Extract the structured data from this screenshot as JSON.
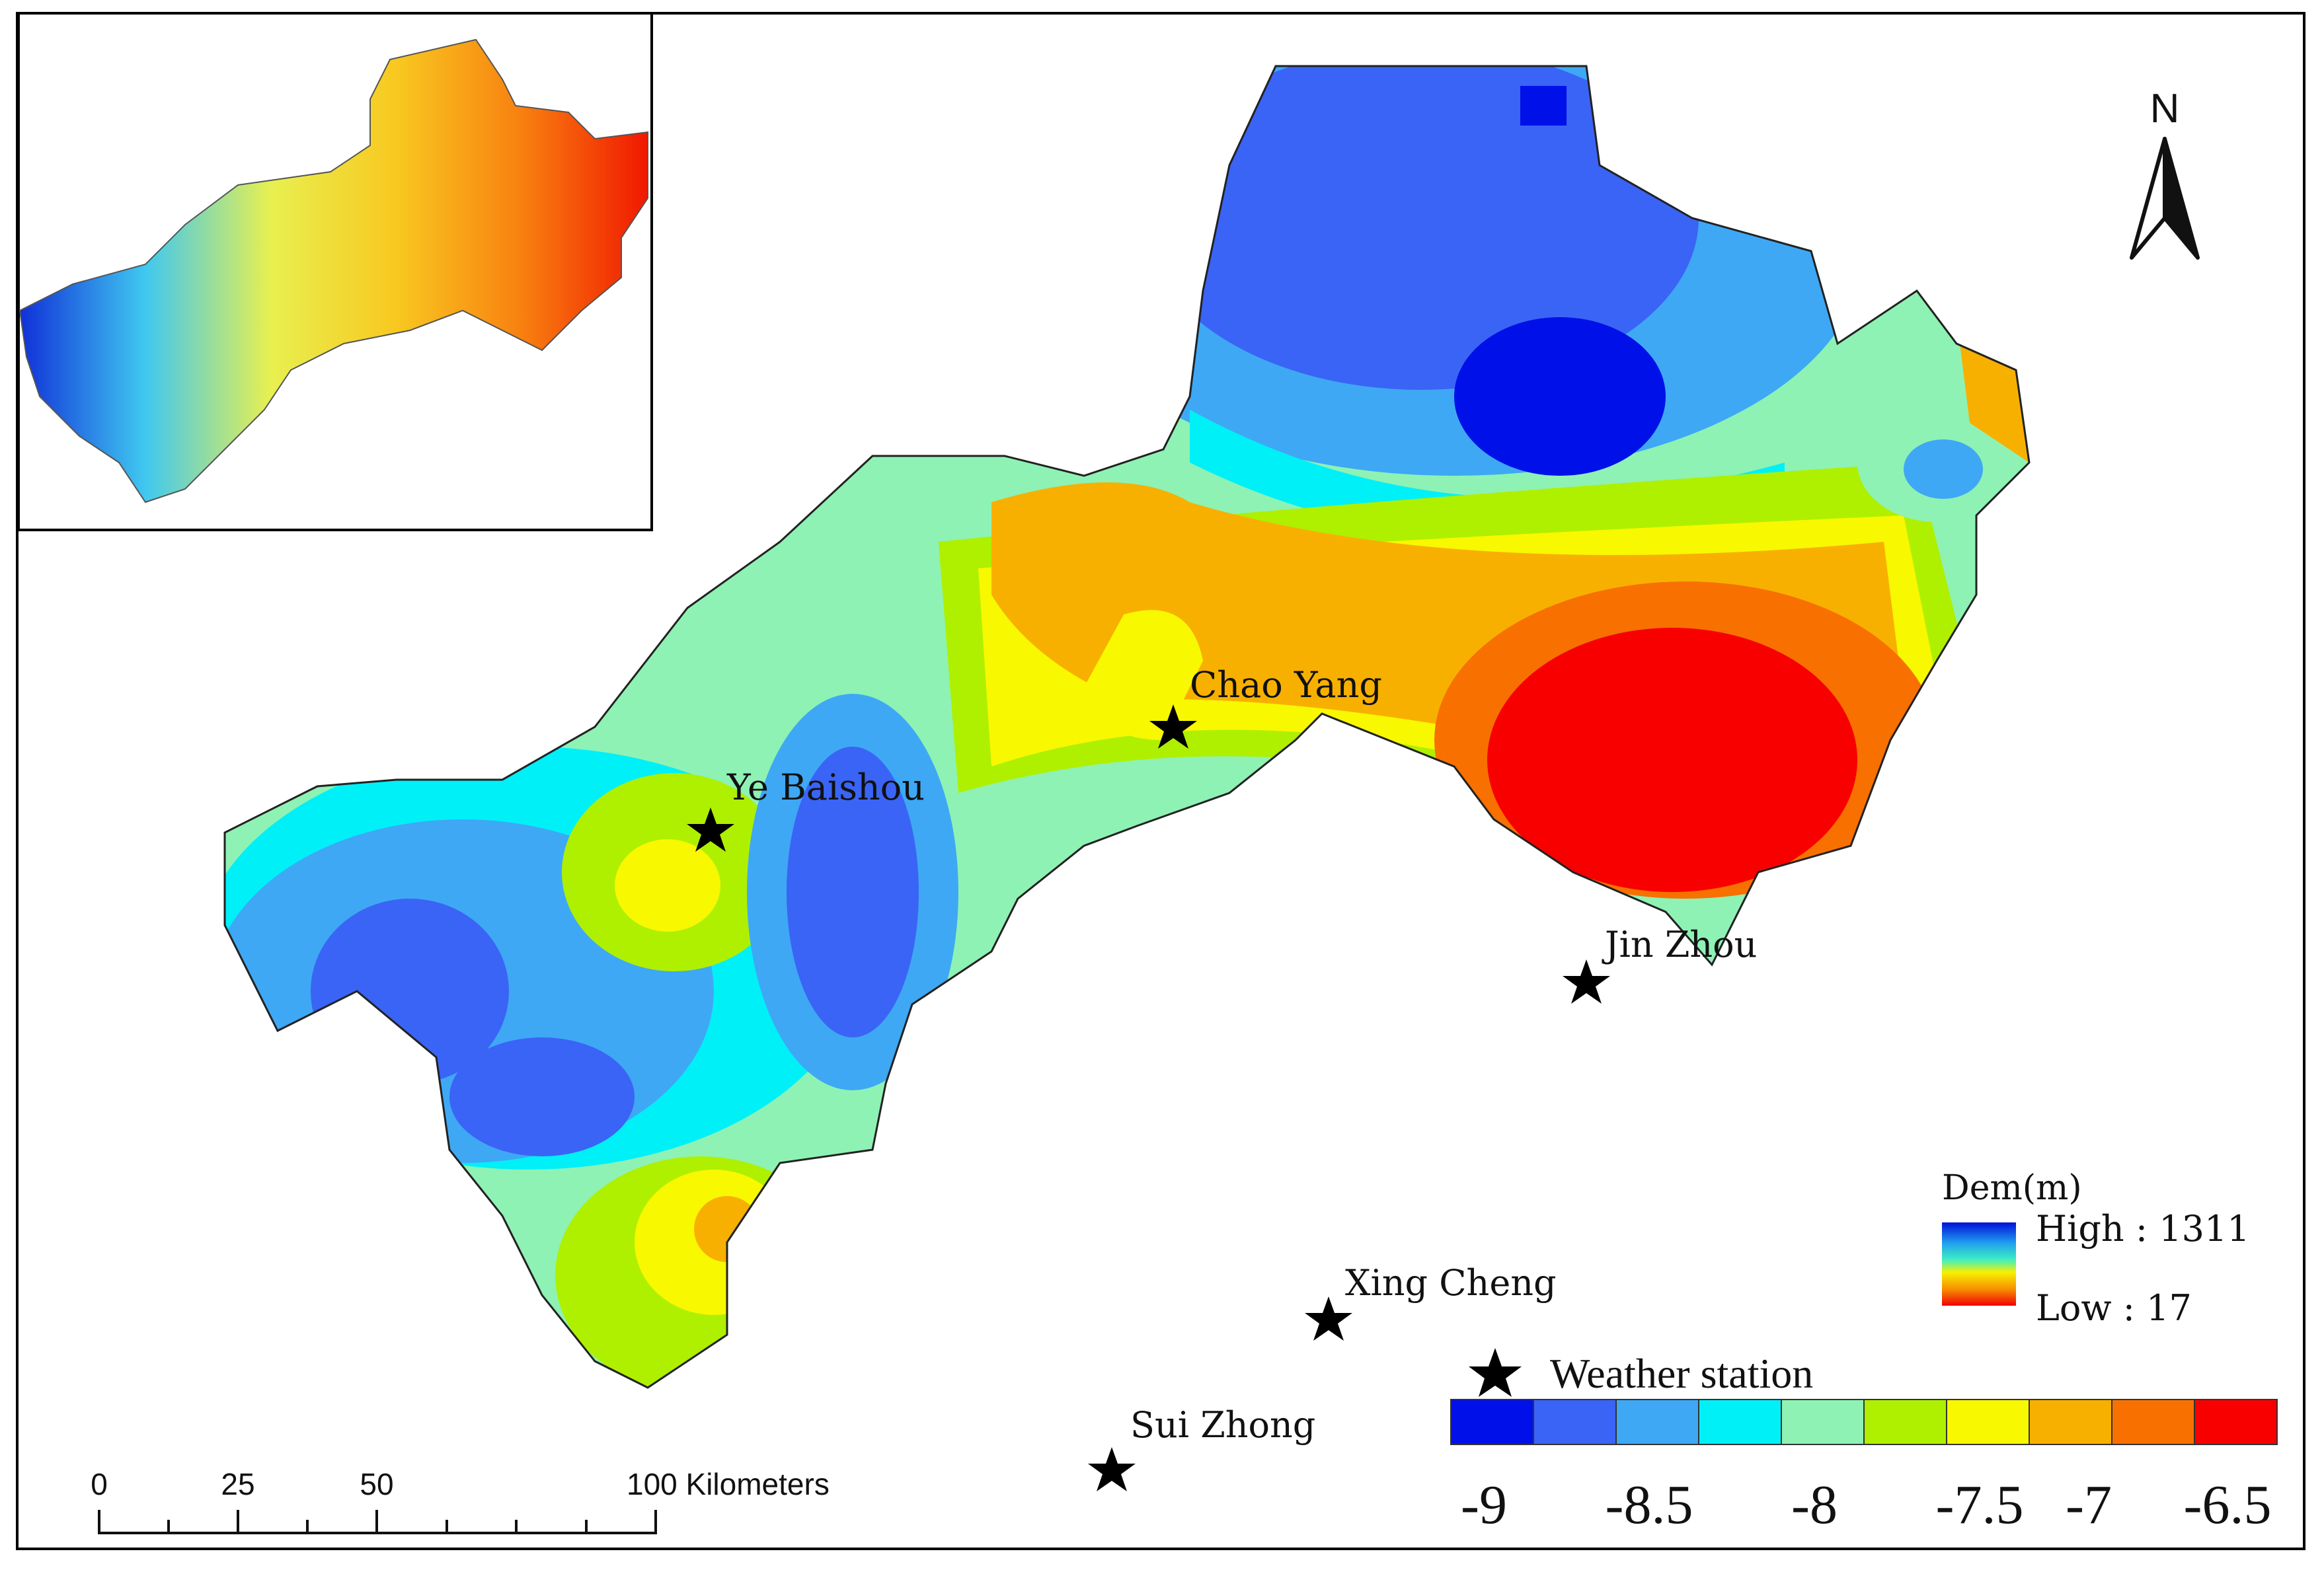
{
  "north_label": "N",
  "stations": [
    {
      "name": "Ye Baishou"
    },
    {
      "name": "Chao Yang"
    },
    {
      "name": "Jin Zhou"
    },
    {
      "name": "Xing Cheng"
    },
    {
      "name": "Sui Zhong"
    }
  ],
  "scale_bar": {
    "ticks": [
      "0",
      "25",
      "50",
      "100 Kilometers"
    ]
  },
  "dem_legend": {
    "title": "Dem(m)",
    "high_label": "High : 1311",
    "low_label": "Low : 17"
  },
  "station_legend": {
    "label": "Weather station"
  },
  "color_legend": {
    "colors": [
      "#0010e8",
      "#3a64f5",
      "#3ea8f5",
      "#00f0f8",
      "#8ef2b4",
      "#aef000",
      "#f8f800",
      "#f8b000",
      "#f87000",
      "#f80000"
    ],
    "labels": [
      "-9",
      "-8.5",
      "-8",
      "-7.5",
      "-7",
      "-6.5"
    ]
  }
}
